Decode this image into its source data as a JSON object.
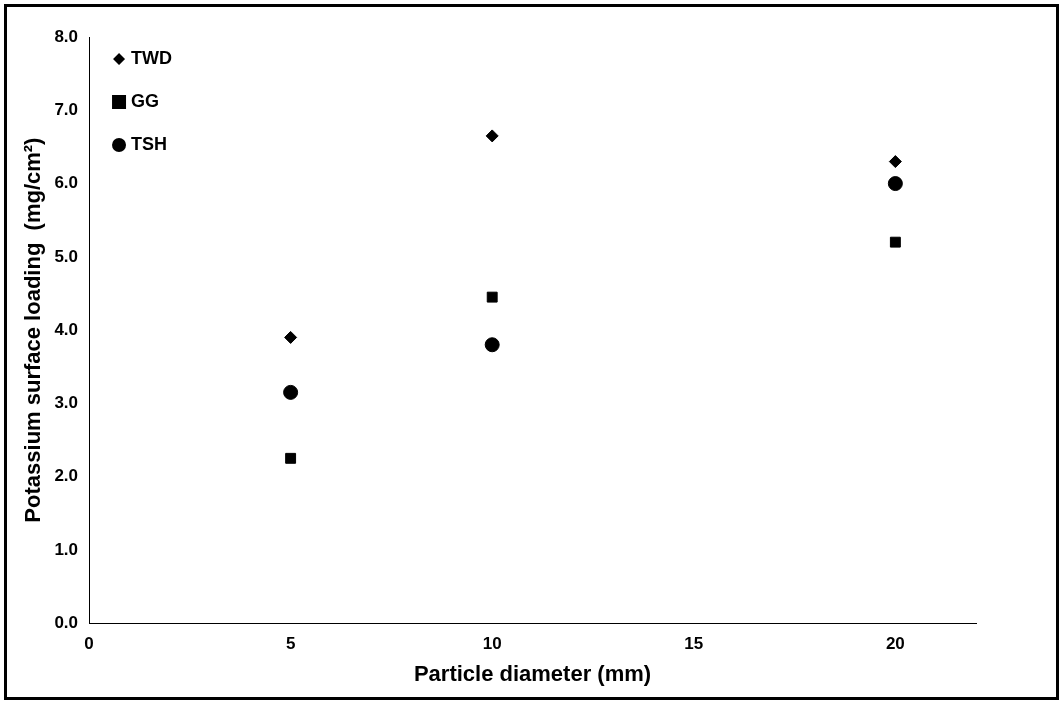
{
  "chart_data": {
    "type": "scatter",
    "xlabel": "Particle diameter (mm)",
    "ylabel": "Potassium surface loading  (mg/cm²)",
    "x": [
      5,
      10,
      20
    ],
    "series": [
      {
        "name": "TWD",
        "color": "#000000",
        "marker": "diamond",
        "values": [
          3.9,
          6.65,
          6.3
        ]
      },
      {
        "name": "GG",
        "color": "#000000",
        "marker": "square",
        "values": [
          2.25,
          4.45,
          5.2
        ]
      },
      {
        "name": "TSH",
        "color": "#000000",
        "marker": "circle",
        "values": [
          3.15,
          3.8,
          6.0
        ]
      }
    ],
    "xlim": [
      0,
      22
    ],
    "xticks": [
      0,
      5,
      10,
      15,
      20
    ],
    "ylim": [
      0,
      8
    ],
    "yticks": [
      {
        "value": 0,
        "label": "0.0"
      },
      {
        "value": 1,
        "label": "1.0"
      },
      {
        "value": 2,
        "label": "2.0"
      },
      {
        "value": 3,
        "label": "3.0"
      },
      {
        "value": 4,
        "label": "4.0"
      },
      {
        "value": 5,
        "label": "5.0"
      },
      {
        "value": 6,
        "label": "6.0"
      },
      {
        "value": 7,
        "label": "7.0"
      },
      {
        "value": 8,
        "label": "8.0"
      }
    ],
    "grid": false,
    "legend": "top left"
  }
}
